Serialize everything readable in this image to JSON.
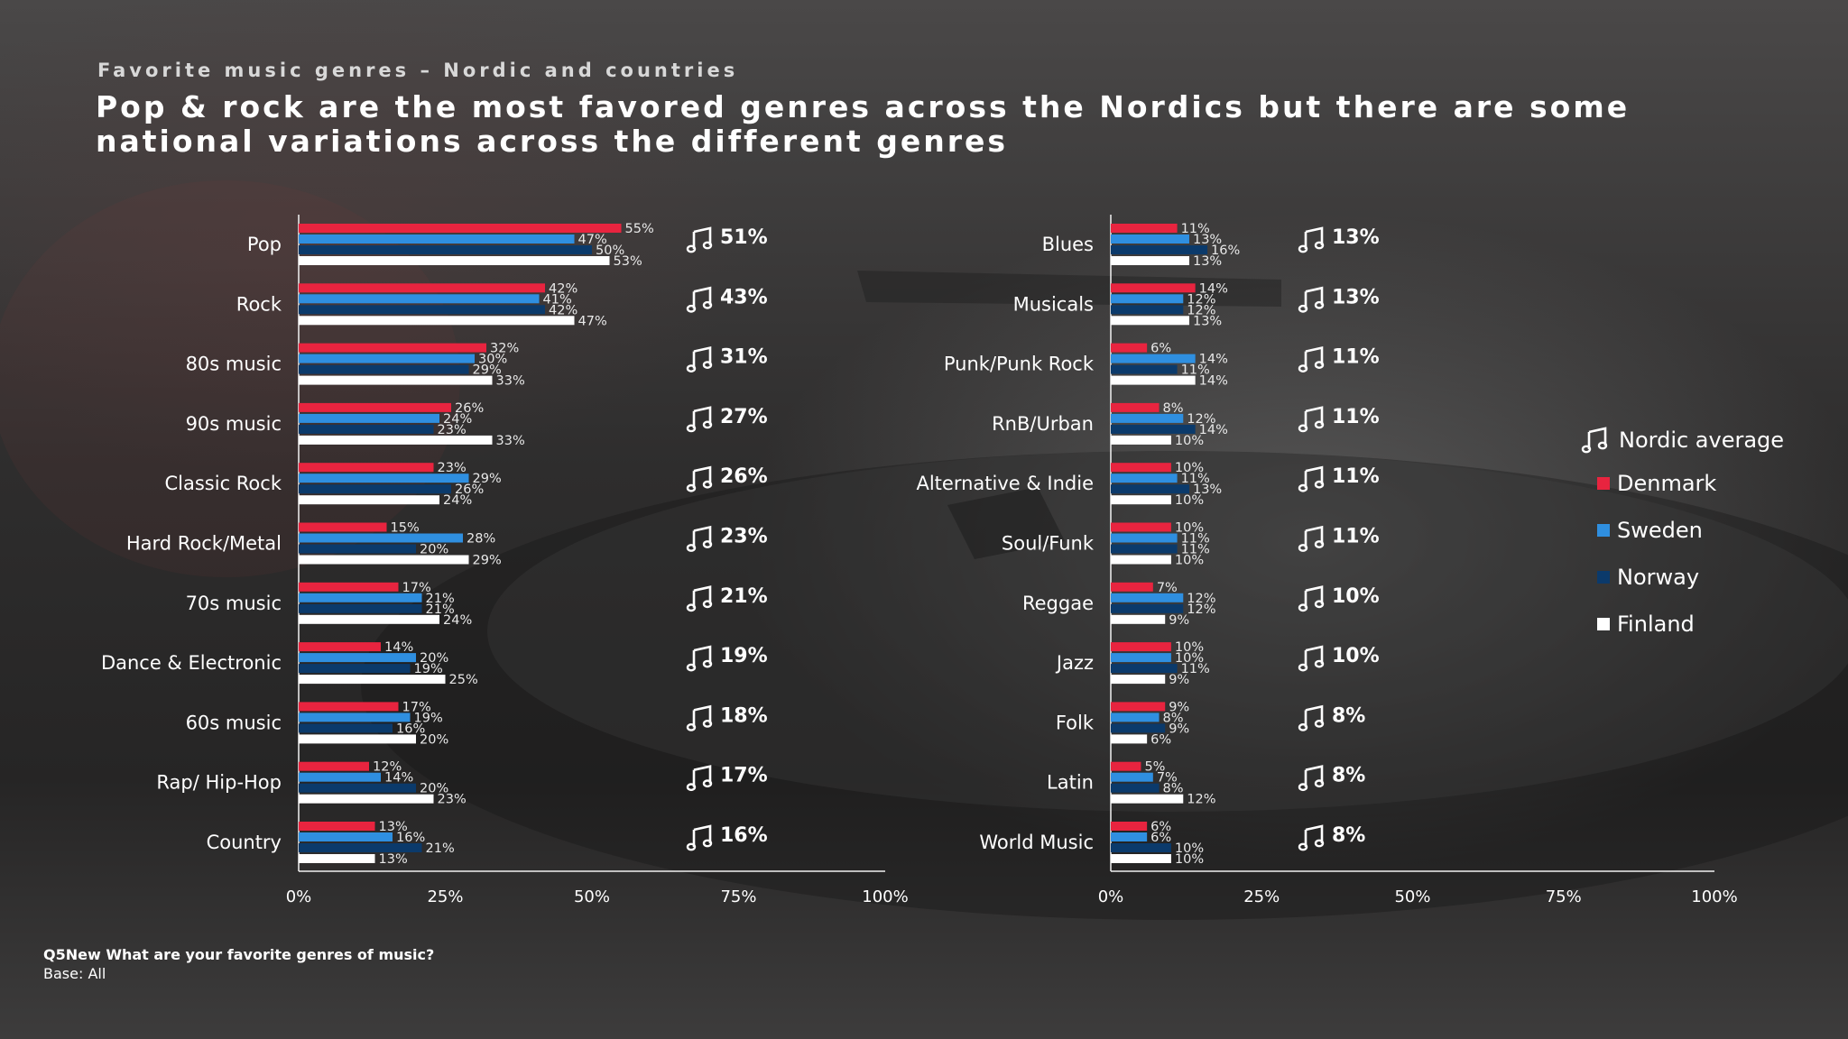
{
  "header": {
    "subtitle": "Favorite music genres – Nordic and countries",
    "title": "Pop & rock are the most favored genres across the Nordics but there are some national variations across the different genres"
  },
  "legend": {
    "average_label": "Nordic average",
    "items": [
      {
        "label": "Denmark",
        "color": "#e8243f"
      },
      {
        "label": "Sweden",
        "color": "#2f8fe0"
      },
      {
        "label": "Norway",
        "color": "#0b3a6b"
      },
      {
        "label": "Finland",
        "color": "#ffffff"
      }
    ]
  },
  "footnote": {
    "question": "Q5New What are your favorite genres of music?",
    "base": "Base: All"
  },
  "chart_data": [
    {
      "type": "bar",
      "orientation": "horizontal",
      "categories": [
        "Pop",
        "Rock",
        "80s music",
        "90s music",
        "Classic Rock",
        "Hard Rock/Metal",
        "70s music",
        "Dance & Electronic",
        "60s music",
        "Rap/ Hip-Hop",
        "Country"
      ],
      "series": [
        {
          "name": "Denmark",
          "values": [
            55,
            42,
            32,
            26,
            23,
            15,
            17,
            14,
            17,
            12,
            13
          ]
        },
        {
          "name": "Sweden",
          "values": [
            47,
            41,
            30,
            24,
            29,
            28,
            21,
            20,
            19,
            14,
            16
          ]
        },
        {
          "name": "Norway",
          "values": [
            50,
            42,
            29,
            23,
            26,
            20,
            21,
            19,
            16,
            20,
            21
          ]
        },
        {
          "name": "Finland",
          "values": [
            53,
            47,
            33,
            33,
            24,
            29,
            24,
            25,
            20,
            23,
            13
          ]
        }
      ],
      "nordic_average": [
        51,
        43,
        31,
        27,
        26,
        23,
        21,
        19,
        18,
        17,
        16
      ],
      "xlim": [
        0,
        100
      ],
      "xticks": [
        "0%",
        "25%",
        "50%",
        "75%",
        "100%"
      ],
      "unit": "%"
    },
    {
      "type": "bar",
      "orientation": "horizontal",
      "categories": [
        "Blues",
        "Musicals",
        "Punk/Punk Rock",
        "RnB/Urban",
        "Alternative & Indie",
        "Soul/Funk",
        "Reggae",
        "Jazz",
        "Folk",
        "Latin",
        "World Music"
      ],
      "series": [
        {
          "name": "Denmark",
          "values": [
            11,
            14,
            6,
            8,
            10,
            10,
            7,
            10,
            9,
            5,
            6
          ]
        },
        {
          "name": "Sweden",
          "values": [
            13,
            12,
            14,
            12,
            11,
            11,
            12,
            10,
            8,
            7,
            6
          ]
        },
        {
          "name": "Norway",
          "values": [
            16,
            12,
            11,
            14,
            13,
            11,
            12,
            11,
            9,
            8,
            10
          ]
        },
        {
          "name": "Finland",
          "values": [
            13,
            13,
            14,
            10,
            10,
            10,
            9,
            9,
            6,
            12,
            10
          ]
        }
      ],
      "nordic_average": [
        13,
        13,
        11,
        11,
        11,
        11,
        10,
        10,
        8,
        8,
        8
      ],
      "xlim": [
        0,
        100
      ],
      "xticks": [
        "0%",
        "25%",
        "50%",
        "75%",
        "100%"
      ],
      "unit": "%"
    }
  ]
}
